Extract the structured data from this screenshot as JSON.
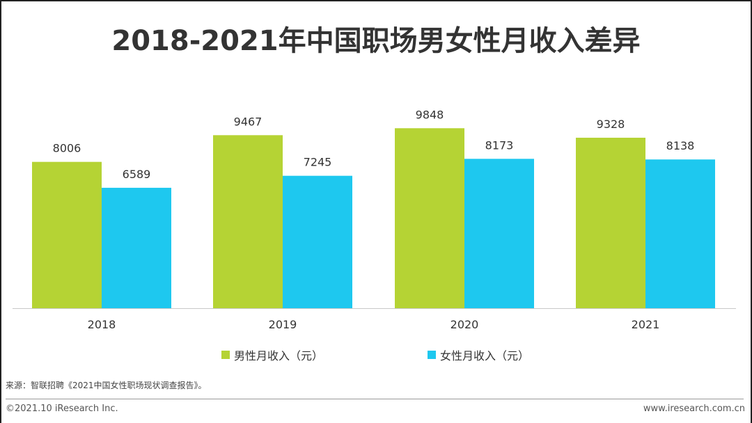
{
  "chart_data": {
    "type": "bar",
    "title": "2018-2021年中国职场男女性月收入差异",
    "categories": [
      "2018",
      "2019",
      "2020",
      "2021"
    ],
    "series": [
      {
        "name": "男性月收入（元）",
        "color": "#b5d334",
        "values": [
          8006,
          9467,
          9848,
          9328
        ]
      },
      {
        "name": "女性月收入（元）",
        "color": "#1ec8ef",
        "values": [
          6589,
          7245,
          8173,
          8138
        ]
      }
    ],
    "ylim": [
      0,
      11000
    ],
    "xlabel": "",
    "ylabel": "",
    "legend_position": "bottom-center",
    "grid": false
  },
  "legend": {
    "male_label": "男性月收入（元）",
    "female_label": "女性月收入（元）"
  },
  "footer": {
    "source": "来源：智联招聘《2021中国女性职场现状调查报告》。",
    "copyright": "©2021.10 iResearch Inc.",
    "website": "www.iresearch.com.cn"
  }
}
